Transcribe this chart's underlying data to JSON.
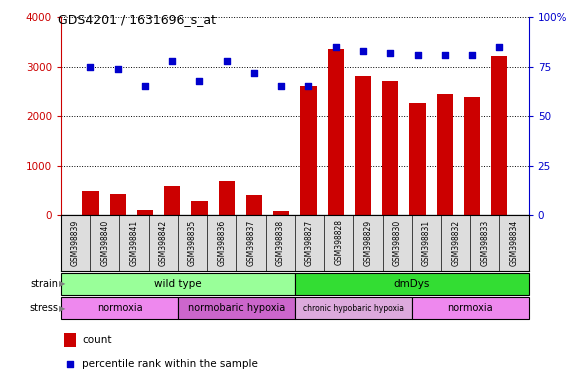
{
  "title": "GDS4201 / 1631696_s_at",
  "samples": [
    "GSM398839",
    "GSM398840",
    "GSM398841",
    "GSM398842",
    "GSM398835",
    "GSM398836",
    "GSM398837",
    "GSM398838",
    "GSM398827",
    "GSM398828",
    "GSM398829",
    "GSM398830",
    "GSM398831",
    "GSM398832",
    "GSM398833",
    "GSM398834"
  ],
  "counts": [
    480,
    420,
    110,
    590,
    290,
    680,
    410,
    90,
    2600,
    3350,
    2820,
    2720,
    2270,
    2450,
    2380,
    3210
  ],
  "percentiles": [
    75,
    74,
    65,
    78,
    68,
    78,
    72,
    65,
    65,
    85,
    83,
    82,
    81,
    81,
    81,
    85
  ],
  "ylim_left": [
    0,
    4000
  ],
  "ylim_right": [
    0,
    100
  ],
  "yticks_left": [
    0,
    1000,
    2000,
    3000,
    4000
  ],
  "yticks_right": [
    0,
    25,
    50,
    75,
    100
  ],
  "bar_color": "#cc0000",
  "dot_color": "#0000cc",
  "strain_groups": [
    {
      "label": "wild type",
      "start": 0,
      "end": 8,
      "color": "#99ff99"
    },
    {
      "label": "dmDys",
      "start": 8,
      "end": 16,
      "color": "#33dd33"
    }
  ],
  "stress_groups": [
    {
      "label": "normoxia",
      "start": 0,
      "end": 4,
      "color": "#ee88ee"
    },
    {
      "label": "normobaric hypoxia",
      "start": 4,
      "end": 8,
      "color": "#cc66cc"
    },
    {
      "label": "chronic hypobaric hypoxia",
      "start": 8,
      "end": 12,
      "color": "#ddaadd"
    },
    {
      "label": "normoxia",
      "start": 12,
      "end": 16,
      "color": "#ee88ee"
    }
  ],
  "legend_count_color": "#cc0000",
  "legend_dot_color": "#0000cc",
  "tick_color_left": "#cc0000",
  "tick_color_right": "#0000cc",
  "xtick_bg": "#dddddd"
}
